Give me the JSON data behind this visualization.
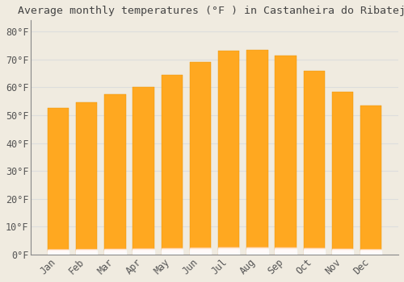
{
  "title": "Average monthly temperatures (°F ) in Castanheira do Ribatejo",
  "months": [
    "Jan",
    "Feb",
    "Mar",
    "Apr",
    "May",
    "Jun",
    "Jul",
    "Aug",
    "Sep",
    "Oct",
    "Nov",
    "Dec"
  ],
  "values": [
    52.5,
    54.5,
    57.5,
    60.0,
    64.5,
    69.0,
    73.0,
    73.5,
    71.5,
    66.0,
    58.5,
    53.5
  ],
  "bar_color_top": "#FFA500",
  "bar_color_bottom": "#FFCC44",
  "bar_edge_color": "#E89000",
  "background_color": "#F0EBE0",
  "grid_color": "#DDDDDD",
  "title_color": "#444444",
  "tick_color": "#555555",
  "spine_color": "#888888",
  "ylim": [
    0,
    84
  ],
  "yticks": [
    0,
    10,
    20,
    30,
    40,
    50,
    60,
    70,
    80
  ],
  "ytick_labels": [
    "0°F",
    "10°F",
    "20°F",
    "30°F",
    "40°F",
    "50°F",
    "60°F",
    "70°F",
    "80°F"
  ],
  "title_fontsize": 9.5,
  "tick_fontsize": 8.5,
  "bar_width": 0.75
}
